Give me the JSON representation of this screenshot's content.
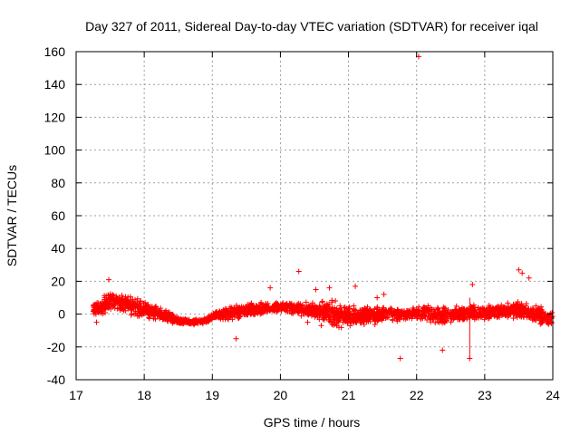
{
  "chart_data": {
    "type": "scatter",
    "title": "Day 327 of 2011, Sidereal Day-to-day VTEC variation (SDTVAR) for receiver iqal",
    "xlabel": "GPS time / hours",
    "ylabel": "SDTVAR / TECUs",
    "xlim": [
      17,
      24
    ],
    "ylim": [
      -40,
      160
    ],
    "xticks": [
      17,
      18,
      19,
      20,
      21,
      22,
      23,
      24
    ],
    "xtick_labels": [
      "17",
      "18",
      "19",
      "20",
      "21",
      "22",
      "23",
      "24"
    ],
    "yticks": [
      -40,
      -20,
      0,
      20,
      40,
      60,
      80,
      100,
      120,
      140,
      160
    ],
    "ytick_labels": [
      "-40",
      "-20",
      "0",
      "20",
      "40",
      "60",
      "80",
      "100",
      "120",
      "140",
      "160"
    ],
    "grid": true,
    "marker": "+",
    "series_color": "#ff0000",
    "band": {
      "description": "dense scatter envelope (hours, center TECU, half-width TECU)",
      "x": [
        17.25,
        17.4,
        17.5,
        17.7,
        17.9,
        18.1,
        18.3,
        18.5,
        18.7,
        18.9,
        19.05,
        19.3,
        19.5,
        19.7,
        19.9,
        20.1,
        20.3,
        20.5,
        20.75,
        21.0,
        21.3,
        21.6,
        21.9,
        22.1,
        22.3,
        22.5,
        22.8,
        23.0,
        23.3,
        23.5,
        23.7,
        23.9,
        24.0
      ],
      "center": [
        3,
        5,
        8,
        6,
        4,
        2,
        -1,
        -4,
        -5,
        -4,
        -1,
        1,
        2,
        3,
        4,
        4,
        3,
        2,
        0,
        -1,
        -1,
        0,
        0,
        1,
        -1,
        0,
        1,
        1,
        2,
        3,
        0,
        -2,
        -3
      ],
      "half": [
        5,
        7,
        9,
        8,
        7,
        6,
        5,
        3,
        2,
        2,
        3,
        6,
        5,
        5,
        4,
        4,
        5,
        6,
        10,
        8,
        7,
        5,
        5,
        5,
        8,
        6,
        6,
        5,
        5,
        8,
        7,
        7,
        6
      ]
    },
    "outliers": [
      {
        "x": 22.03,
        "y": 157
      },
      {
        "x": 20.27,
        "y": 26
      },
      {
        "x": 21.76,
        "y": -27
      },
      {
        "x": 22.78,
        "y": -27
      },
      {
        "x": 23.5,
        "y": 27
      },
      {
        "x": 23.55,
        "y": 25
      },
      {
        "x": 17.48,
        "y": 21
      },
      {
        "x": 19.85,
        "y": 16
      },
      {
        "x": 20.52,
        "y": 15
      },
      {
        "x": 21.1,
        "y": 17
      },
      {
        "x": 21.42,
        "y": 10
      },
      {
        "x": 21.52,
        "y": 12
      },
      {
        "x": 22.38,
        "y": -22
      },
      {
        "x": 22.82,
        "y": 18
      },
      {
        "x": 20.72,
        "y": 16
      },
      {
        "x": 23.65,
        "y": 22
      },
      {
        "x": 19.35,
        "y": -15
      },
      {
        "x": 17.3,
        "y": -5
      },
      {
        "x": 20.4,
        "y": -5
      },
      {
        "x": 20.6,
        "y": -7
      }
    ],
    "vertical_segments": [
      {
        "x": 22.78,
        "y_from": -27,
        "y_to": 10
      }
    ]
  }
}
